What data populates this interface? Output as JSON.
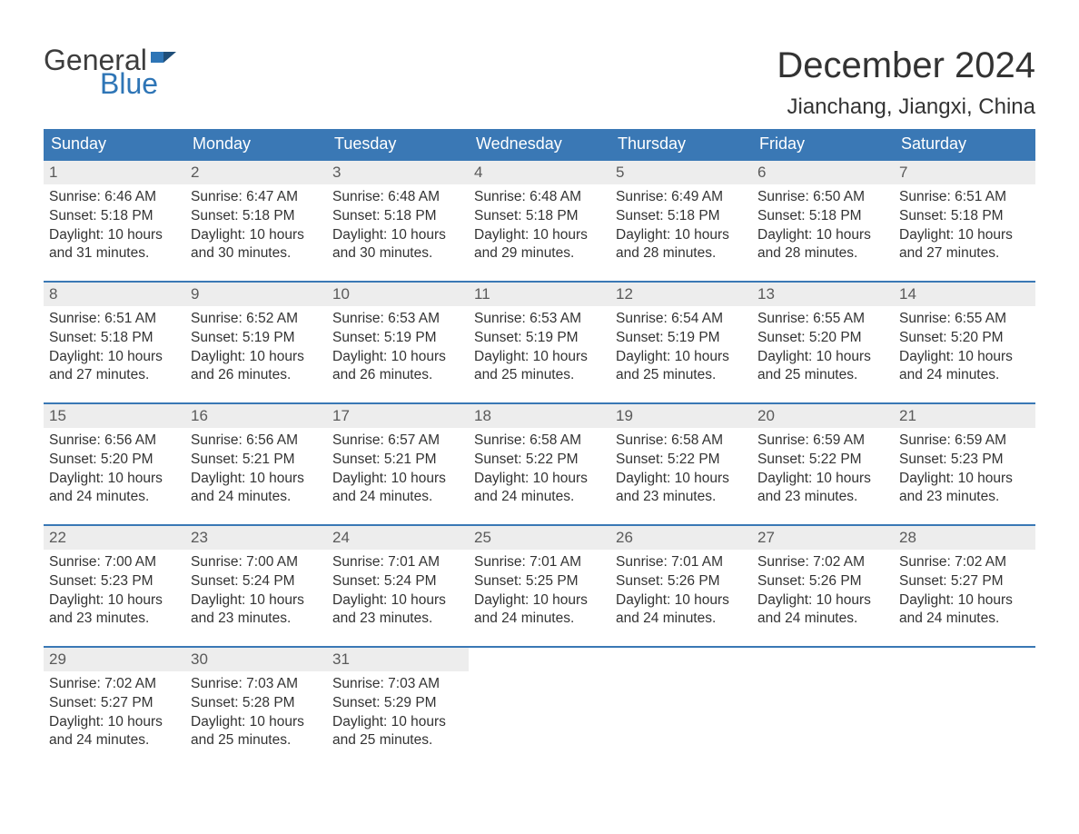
{
  "brand": {
    "general": "General",
    "blue": "Blue"
  },
  "title": "December 2024",
  "location": "Jianchang, Jiangxi, China",
  "colors": {
    "header_bg": "#3a78b5",
    "header_text": "#ffffff",
    "daynum_bg": "#ededed",
    "daynum_text": "#5a5a5a",
    "body_text": "#333333",
    "row_border": "#3a78b5",
    "logo_general": "#3d3d3d",
    "logo_blue": "#2e75b6",
    "page_bg": "#ffffff"
  },
  "weekdays": [
    "Sunday",
    "Monday",
    "Tuesday",
    "Wednesday",
    "Thursday",
    "Friday",
    "Saturday"
  ],
  "weeks": [
    [
      {
        "n": "1",
        "sr": "Sunrise: 6:46 AM",
        "ss": "Sunset: 5:18 PM",
        "d1": "Daylight: 10 hours",
        "d2": "and 31 minutes."
      },
      {
        "n": "2",
        "sr": "Sunrise: 6:47 AM",
        "ss": "Sunset: 5:18 PM",
        "d1": "Daylight: 10 hours",
        "d2": "and 30 minutes."
      },
      {
        "n": "3",
        "sr": "Sunrise: 6:48 AM",
        "ss": "Sunset: 5:18 PM",
        "d1": "Daylight: 10 hours",
        "d2": "and 30 minutes."
      },
      {
        "n": "4",
        "sr": "Sunrise: 6:48 AM",
        "ss": "Sunset: 5:18 PM",
        "d1": "Daylight: 10 hours",
        "d2": "and 29 minutes."
      },
      {
        "n": "5",
        "sr": "Sunrise: 6:49 AM",
        "ss": "Sunset: 5:18 PM",
        "d1": "Daylight: 10 hours",
        "d2": "and 28 minutes."
      },
      {
        "n": "6",
        "sr": "Sunrise: 6:50 AM",
        "ss": "Sunset: 5:18 PM",
        "d1": "Daylight: 10 hours",
        "d2": "and 28 minutes."
      },
      {
        "n": "7",
        "sr": "Sunrise: 6:51 AM",
        "ss": "Sunset: 5:18 PM",
        "d1": "Daylight: 10 hours",
        "d2": "and 27 minutes."
      }
    ],
    [
      {
        "n": "8",
        "sr": "Sunrise: 6:51 AM",
        "ss": "Sunset: 5:18 PM",
        "d1": "Daylight: 10 hours",
        "d2": "and 27 minutes."
      },
      {
        "n": "9",
        "sr": "Sunrise: 6:52 AM",
        "ss": "Sunset: 5:19 PM",
        "d1": "Daylight: 10 hours",
        "d2": "and 26 minutes."
      },
      {
        "n": "10",
        "sr": "Sunrise: 6:53 AM",
        "ss": "Sunset: 5:19 PM",
        "d1": "Daylight: 10 hours",
        "d2": "and 26 minutes."
      },
      {
        "n": "11",
        "sr": "Sunrise: 6:53 AM",
        "ss": "Sunset: 5:19 PM",
        "d1": "Daylight: 10 hours",
        "d2": "and 25 minutes."
      },
      {
        "n": "12",
        "sr": "Sunrise: 6:54 AM",
        "ss": "Sunset: 5:19 PM",
        "d1": "Daylight: 10 hours",
        "d2": "and 25 minutes."
      },
      {
        "n": "13",
        "sr": "Sunrise: 6:55 AM",
        "ss": "Sunset: 5:20 PM",
        "d1": "Daylight: 10 hours",
        "d2": "and 25 minutes."
      },
      {
        "n": "14",
        "sr": "Sunrise: 6:55 AM",
        "ss": "Sunset: 5:20 PM",
        "d1": "Daylight: 10 hours",
        "d2": "and 24 minutes."
      }
    ],
    [
      {
        "n": "15",
        "sr": "Sunrise: 6:56 AM",
        "ss": "Sunset: 5:20 PM",
        "d1": "Daylight: 10 hours",
        "d2": "and 24 minutes."
      },
      {
        "n": "16",
        "sr": "Sunrise: 6:56 AM",
        "ss": "Sunset: 5:21 PM",
        "d1": "Daylight: 10 hours",
        "d2": "and 24 minutes."
      },
      {
        "n": "17",
        "sr": "Sunrise: 6:57 AM",
        "ss": "Sunset: 5:21 PM",
        "d1": "Daylight: 10 hours",
        "d2": "and 24 minutes."
      },
      {
        "n": "18",
        "sr": "Sunrise: 6:58 AM",
        "ss": "Sunset: 5:22 PM",
        "d1": "Daylight: 10 hours",
        "d2": "and 24 minutes."
      },
      {
        "n": "19",
        "sr": "Sunrise: 6:58 AM",
        "ss": "Sunset: 5:22 PM",
        "d1": "Daylight: 10 hours",
        "d2": "and 23 minutes."
      },
      {
        "n": "20",
        "sr": "Sunrise: 6:59 AM",
        "ss": "Sunset: 5:22 PM",
        "d1": "Daylight: 10 hours",
        "d2": "and 23 minutes."
      },
      {
        "n": "21",
        "sr": "Sunrise: 6:59 AM",
        "ss": "Sunset: 5:23 PM",
        "d1": "Daylight: 10 hours",
        "d2": "and 23 minutes."
      }
    ],
    [
      {
        "n": "22",
        "sr": "Sunrise: 7:00 AM",
        "ss": "Sunset: 5:23 PM",
        "d1": "Daylight: 10 hours",
        "d2": "and 23 minutes."
      },
      {
        "n": "23",
        "sr": "Sunrise: 7:00 AM",
        "ss": "Sunset: 5:24 PM",
        "d1": "Daylight: 10 hours",
        "d2": "and 23 minutes."
      },
      {
        "n": "24",
        "sr": "Sunrise: 7:01 AM",
        "ss": "Sunset: 5:24 PM",
        "d1": "Daylight: 10 hours",
        "d2": "and 23 minutes."
      },
      {
        "n": "25",
        "sr": "Sunrise: 7:01 AM",
        "ss": "Sunset: 5:25 PM",
        "d1": "Daylight: 10 hours",
        "d2": "and 24 minutes."
      },
      {
        "n": "26",
        "sr": "Sunrise: 7:01 AM",
        "ss": "Sunset: 5:26 PM",
        "d1": "Daylight: 10 hours",
        "d2": "and 24 minutes."
      },
      {
        "n": "27",
        "sr": "Sunrise: 7:02 AM",
        "ss": "Sunset: 5:26 PM",
        "d1": "Daylight: 10 hours",
        "d2": "and 24 minutes."
      },
      {
        "n": "28",
        "sr": "Sunrise: 7:02 AM",
        "ss": "Sunset: 5:27 PM",
        "d1": "Daylight: 10 hours",
        "d2": "and 24 minutes."
      }
    ],
    [
      {
        "n": "29",
        "sr": "Sunrise: 7:02 AM",
        "ss": "Sunset: 5:27 PM",
        "d1": "Daylight: 10 hours",
        "d2": "and 24 minutes."
      },
      {
        "n": "30",
        "sr": "Sunrise: 7:03 AM",
        "ss": "Sunset: 5:28 PM",
        "d1": "Daylight: 10 hours",
        "d2": "and 25 minutes."
      },
      {
        "n": "31",
        "sr": "Sunrise: 7:03 AM",
        "ss": "Sunset: 5:29 PM",
        "d1": "Daylight: 10 hours",
        "d2": "and 25 minutes."
      },
      {
        "empty": true
      },
      {
        "empty": true
      },
      {
        "empty": true
      },
      {
        "empty": true
      }
    ]
  ]
}
